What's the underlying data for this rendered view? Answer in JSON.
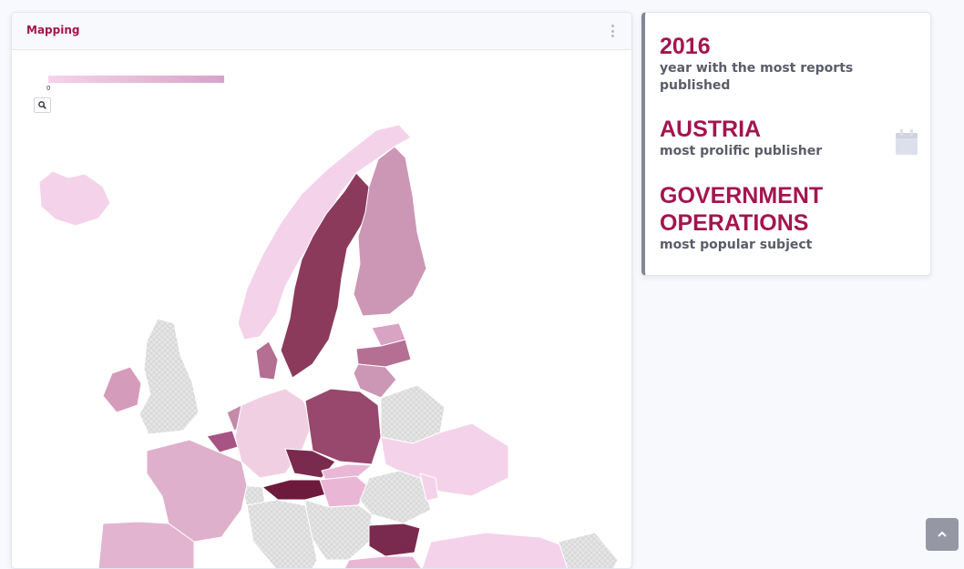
{
  "map_panel": {
    "title": "Mapping",
    "legend": {
      "min_label": "0",
      "gradient_from": "#f4d3ea",
      "gradient_to": "#d8a3c8"
    },
    "zoom_icon": "search-icon",
    "menu_icon": "vertical-dots-icon"
  },
  "stats": [
    {
      "value": "2016",
      "caption": "year with the most reports published"
    },
    {
      "value": "AUSTRIA",
      "caption": "most prolific publisher"
    },
    {
      "value": "GOVERNMENT OPERATIONS",
      "caption": "most popular subject"
    }
  ],
  "stats_icon": "calendar-icon",
  "scroll_top_icon": "chevron-up-icon",
  "colors": {
    "accent": "#a3154f",
    "no_data": "#e4e4e4"
  }
}
